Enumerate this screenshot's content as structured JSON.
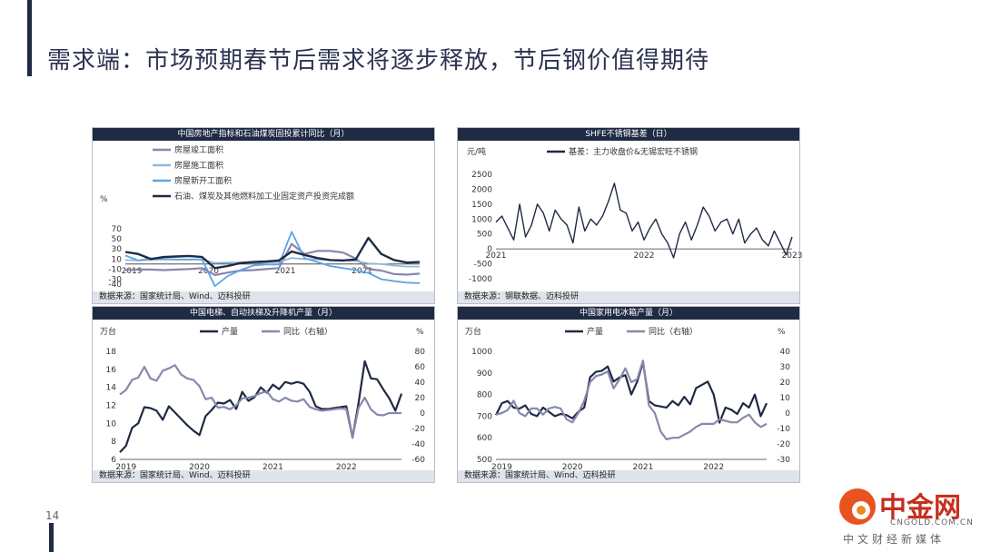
{
  "page": {
    "title": "需求端：市场预期春节后需求将逐步释放，节后钢价值得期待",
    "page_number": "14"
  },
  "logo": {
    "name": "中金网",
    "url": "CNGOLD.COM.CN",
    "subtitle": "中文财经新媒体"
  },
  "colors": {
    "navy": "#1f2a44",
    "purple": "#8b86ad",
    "lightblue": "#8fb8da",
    "blue": "#5aa6e6"
  },
  "chart_data": [
    {
      "type": "line",
      "title": "中国房地产指标和石油煤炭固投累计同比（月）",
      "source": "数据来源：国家统计局、Wind、迈科投研",
      "ylabel": "%",
      "ylim": [
        -40,
        70
      ],
      "yticks": [
        70,
        50,
        30,
        10,
        -10,
        -30,
        -40
      ],
      "ytick_labels": [
        "70",
        "50",
        "30",
        "10",
        "-10",
        "-30",
        "-40"
      ],
      "xlim": [
        2018.917,
        2022.75
      ],
      "xticks": [
        2019,
        2020,
        2021,
        2022
      ],
      "xtick_labels": [
        "2019",
        "2020",
        "2021",
        "2022"
      ],
      "legend": "top-left",
      "series": [
        {
          "name": "房屋竣工面积",
          "color": "#8b86ad",
          "width": 2.2,
          "x": [
            2018.917,
            2019.083,
            2019.25,
            2019.417,
            2019.583,
            2019.75,
            2019.917,
            2020.083,
            2020.25,
            2020.417,
            2020.583,
            2020.75,
            2020.917,
            2021.083,
            2021.25,
            2021.417,
            2021.583,
            2021.75,
            2021.917,
            2022.083,
            2022.25,
            2022.417,
            2022.583,
            2022.75
          ],
          "y": [
            -12,
            -11,
            -11,
            -12,
            -11,
            -10,
            -8,
            -22,
            -17,
            -13,
            -12,
            -10,
            -8,
            40,
            20,
            26,
            26,
            23,
            11,
            -10,
            -13,
            -20,
            -21,
            -19
          ]
        },
        {
          "name": "房屋施工面积",
          "color": "#8fb8da",
          "width": 1.8,
          "x": [
            2018.917,
            2019.083,
            2019.25,
            2019.417,
            2019.583,
            2019.75,
            2019.917,
            2020.083,
            2020.25,
            2020.417,
            2020.583,
            2020.75,
            2020.917,
            2021.083,
            2021.25,
            2021.417,
            2021.583,
            2021.75,
            2021.917,
            2022.083,
            2022.25,
            2022.417,
            2022.583,
            2022.75
          ],
          "y": [
            8,
            7,
            8,
            9,
            9,
            9,
            9,
            2,
            3,
            3,
            3,
            3,
            4,
            12,
            10,
            9,
            8,
            8,
            6,
            1,
            0,
            -3,
            -5,
            -5
          ]
        },
        {
          "name": "房屋新开工面积",
          "color": "#5aa6e6",
          "width": 1.8,
          "x": [
            2018.917,
            2019.083,
            2019.25,
            2019.417,
            2019.583,
            2019.75,
            2019.917,
            2020.083,
            2020.25,
            2020.417,
            2020.583,
            2020.75,
            2020.917,
            2021.083,
            2021.25,
            2021.417,
            2021.583,
            2021.75,
            2021.917,
            2022.083,
            2022.25,
            2022.417,
            2022.583,
            2022.75
          ],
          "y": [
            17,
            7,
            11,
            10,
            9,
            9,
            9,
            -44,
            -24,
            -12,
            -3,
            -1,
            -1,
            64,
            12,
            4,
            -4,
            -8,
            -12,
            -18,
            -30,
            -34,
            -37,
            -38
          ]
        },
        {
          "name": "石油、煤炭及其他燃料加工业固定资产投资完成额",
          "color": "#1f2a44",
          "width": 2.4,
          "x": [
            2018.917,
            2019.083,
            2019.25,
            2019.417,
            2019.583,
            2019.75,
            2019.917,
            2020.083,
            2020.25,
            2020.417,
            2020.583,
            2020.75,
            2020.917,
            2021.083,
            2021.25,
            2021.417,
            2021.583,
            2021.75,
            2021.917,
            2022.083,
            2022.25,
            2022.417,
            2022.583,
            2022.75
          ],
          "y": [
            24,
            20,
            10,
            14,
            15,
            16,
            14,
            -8,
            -4,
            2,
            4,
            5,
            7,
            25,
            18,
            12,
            8,
            7,
            9,
            52,
            20,
            8,
            3,
            4
          ]
        }
      ]
    },
    {
      "type": "line",
      "title": "SHFE不锈钢基差（日）",
      "source": "数据来源：钢联数据、迈科投研",
      "ylabel": "元/吨",
      "ylim": [
        -1000,
        2500
      ],
      "yticks": [
        2500,
        2000,
        1500,
        1000,
        500,
        0,
        -500,
        -1000
      ],
      "ytick_labels": [
        "2500",
        "2000",
        "1500",
        "1000",
        "500",
        "0",
        "-500",
        "-1000"
      ],
      "xlim": [
        2021.0,
        2023.0
      ],
      "xticks": [
        2021,
        2022,
        2023
      ],
      "xtick_labels": [
        "2021",
        "2022",
        "2023"
      ],
      "legend": "top-center",
      "series": [
        {
          "name": "基差：主力收盘价&无锡宏旺不锈钢",
          "color": "#1f2a44",
          "width": 1.4,
          "x": [
            2021.0,
            2021.04,
            2021.08,
            2021.12,
            2021.16,
            2021.2,
            2021.24,
            2021.28,
            2021.32,
            2021.36,
            2021.4,
            2021.44,
            2021.48,
            2021.52,
            2021.56,
            2021.6,
            2021.64,
            2021.68,
            2021.72,
            2021.76,
            2021.8,
            2021.84,
            2021.88,
            2021.92,
            2021.96,
            2022.0,
            2022.04,
            2022.08,
            2022.12,
            2022.16,
            2022.2,
            2022.24,
            2022.28,
            2022.32,
            2022.36,
            2022.4,
            2022.44,
            2022.48,
            2022.52,
            2022.56,
            2022.6,
            2022.64,
            2022.68,
            2022.72,
            2022.76,
            2022.8,
            2022.84,
            2022.88,
            2022.92,
            2022.96,
            2023.0
          ],
          "y": [
            900,
            1100,
            700,
            300,
            1500,
            400,
            800,
            1500,
            1200,
            600,
            1300,
            1000,
            800,
            200,
            1400,
            600,
            1000,
            800,
            1100,
            1600,
            2200,
            1300,
            1200,
            600,
            900,
            300,
            700,
            1000,
            500,
            200,
            -300,
            500,
            900,
            300,
            800,
            1400,
            1100,
            600,
            900,
            1000,
            500,
            1000,
            200,
            500,
            700,
            300,
            100,
            600,
            200,
            -200,
            400
          ]
        }
      ]
    },
    {
      "type": "line",
      "title": "中国电梯、自动扶梯及升降机产量（月）",
      "source": "数据来源：国家统计局、Wind、迈科投研",
      "ylabel": "万台",
      "y2label": "%",
      "ylim": [
        6,
        18
      ],
      "yticks": [
        18,
        16,
        14,
        12,
        10,
        8,
        6
      ],
      "ytick_labels": [
        "18",
        "16",
        "14",
        "12",
        "10",
        "8",
        "6"
      ],
      "y2lim": [
        -60,
        80
      ],
      "y2ticks": [
        80,
        60,
        40,
        20,
        0,
        -20,
        -40,
        -60
      ],
      "y2tick_labels": [
        "80",
        "60",
        "40",
        "20",
        "0",
        "-20",
        "-40",
        "-60"
      ],
      "xlim": [
        2018.917,
        2022.75
      ],
      "xticks": [
        2019,
        2020,
        2021,
        2022
      ],
      "xtick_labels": [
        "2019",
        "2020",
        "2021",
        "2022"
      ],
      "legend": "top-center",
      "series": [
        {
          "name": "产量",
          "axis": "left",
          "color": "#1f2a44",
          "width": 2.2,
          "x": [
            2018.917,
            2019.0,
            2019.083,
            2019.167,
            2019.25,
            2019.333,
            2019.417,
            2019.5,
            2019.583,
            2019.667,
            2019.75,
            2019.833,
            2019.917,
            2020.0,
            2020.083,
            2020.167,
            2020.25,
            2020.333,
            2020.417,
            2020.5,
            2020.583,
            2020.667,
            2020.75,
            2020.833,
            2020.917,
            2021.0,
            2021.083,
            2021.167,
            2021.25,
            2021.333,
            2021.417,
            2021.5,
            2021.583,
            2021.667,
            2021.75,
            2021.833,
            2021.917,
            2022.0,
            2022.083,
            2022.167,
            2022.25,
            2022.333,
            2022.417,
            2022.5,
            2022.583,
            2022.667,
            2022.75
          ],
          "y": [
            6.8,
            7.5,
            9.5,
            10,
            11.8,
            11.7,
            11.4,
            10.4,
            11.9,
            11.2,
            10.5,
            9.8,
            9.2,
            8.7,
            10.8,
            11.5,
            12.3,
            12.2,
            12.6,
            11.6,
            13.5,
            12.5,
            12.9,
            14.0,
            13.4,
            14.3,
            13.8,
            14.6,
            14.4,
            14.6,
            14.4,
            13.5,
            11.9,
            11.6,
            11.6,
            11.7,
            11.8,
            11.9,
            8.4,
            12.3,
            16.9,
            15.0,
            14.9,
            13.8,
            12.8,
            11.4,
            13.3
          ]
        },
        {
          "name": "同比（右轴）",
          "axis": "right",
          "color": "#8b86ad",
          "width": 2.2,
          "x": [
            2018.917,
            2019.0,
            2019.083,
            2019.167,
            2019.25,
            2019.333,
            2019.417,
            2019.5,
            2019.583,
            2019.667,
            2019.75,
            2019.833,
            2019.917,
            2020.0,
            2020.083,
            2020.167,
            2020.25,
            2020.333,
            2020.417,
            2020.5,
            2020.583,
            2020.667,
            2020.75,
            2020.833,
            2020.917,
            2021.0,
            2021.083,
            2021.167,
            2021.25,
            2021.333,
            2021.417,
            2021.5,
            2021.583,
            2021.667,
            2021.75,
            2021.833,
            2021.917,
            2022.0,
            2022.083,
            2022.167,
            2022.25,
            2022.333,
            2022.417,
            2022.5,
            2022.583,
            2022.667,
            2022.75
          ],
          "y": [
            24,
            30,
            43,
            46,
            60,
            45,
            42,
            55,
            58,
            62,
            50,
            45,
            43,
            35,
            18,
            20,
            7,
            8,
            5,
            10,
            19,
            20,
            22,
            26,
            28,
            18,
            15,
            20,
            16,
            15,
            18,
            8,
            5,
            3,
            4,
            5,
            6,
            5,
            -32,
            7,
            20,
            5,
            -2,
            -3,
            0,
            0,
            0
          ]
        }
      ]
    },
    {
      "type": "line",
      "title": "中国家用电冰箱产量（月）",
      "source": "数据来源：国家统计局、Wind、迈科投研",
      "ylabel": "万台",
      "y2label": "%",
      "ylim": [
        500,
        1000
      ],
      "yticks": [
        1000,
        900,
        800,
        700,
        600,
        500
      ],
      "ytick_labels": [
        "1000",
        "900",
        "800",
        "700",
        "600",
        "500"
      ],
      "y2lim": [
        -30,
        40
      ],
      "y2ticks": [
        40,
        30,
        20,
        10,
        0,
        -10,
        -20,
        -30
      ],
      "y2tick_labels": [
        "40",
        "30",
        "20",
        "10",
        "0",
        "-10",
        "-20",
        "-30"
      ],
      "xlim": [
        2018.917,
        2022.75
      ],
      "xticks": [
        2019,
        2020,
        2021,
        2022
      ],
      "xtick_labels": [
        "2019",
        "2020",
        "2021",
        "2022"
      ],
      "legend": "top-center",
      "series": [
        {
          "name": "产量",
          "axis": "left",
          "color": "#1f2a44",
          "width": 2.2,
          "x": [
            2018.917,
            2019.0,
            2019.083,
            2019.167,
            2019.25,
            2019.333,
            2019.417,
            2019.5,
            2019.583,
            2019.667,
            2019.75,
            2019.833,
            2019.917,
            2020.0,
            2020.083,
            2020.167,
            2020.25,
            2020.333,
            2020.417,
            2020.5,
            2020.583,
            2020.667,
            2020.75,
            2020.833,
            2020.917,
            2021.0,
            2021.083,
            2021.167,
            2021.25,
            2021.333,
            2021.417,
            2021.5,
            2021.583,
            2021.667,
            2021.75,
            2021.833,
            2021.917,
            2022.0,
            2022.083,
            2022.167,
            2022.25,
            2022.333,
            2022.417,
            2022.5,
            2022.583,
            2022.667,
            2022.75
          ],
          "y": [
            705,
            760,
            770,
            740,
            735,
            750,
            710,
            700,
            740,
            720,
            700,
            710,
            705,
            690,
            720,
            740,
            880,
            905,
            910,
            930,
            860,
            880,
            890,
            800,
            860,
            950,
            770,
            750,
            745,
            740,
            770,
            750,
            790,
            755,
            830,
            845,
            860,
            800,
            670,
            740,
            730,
            710,
            760,
            740,
            800,
            700,
            760
          ]
        },
        {
          "name": "同比（右轴）",
          "axis": "right",
          "color": "#8b86ad",
          "width": 2.2,
          "x": [
            2018.917,
            2019.0,
            2019.083,
            2019.167,
            2019.25,
            2019.333,
            2019.417,
            2019.5,
            2019.583,
            2019.667,
            2019.75,
            2019.833,
            2019.917,
            2020.0,
            2020.083,
            2020.167,
            2020.25,
            2020.333,
            2020.417,
            2020.5,
            2020.583,
            2020.667,
            2020.75,
            2020.833,
            2020.917,
            2021.0,
            2021.083,
            2021.167,
            2021.25,
            2021.333,
            2021.417,
            2021.5,
            2021.583,
            2021.667,
            2021.75,
            2021.833,
            2021.917,
            2022.0,
            2022.083,
            2022.167,
            2022.25,
            2022.333,
            2022.417,
            2022.5,
            2022.583,
            2022.667,
            2022.75
          ],
          "y": [
            -1,
            0,
            2,
            8,
            0,
            -2,
            3,
            3,
            -1,
            3,
            4,
            3,
            -4,
            -6,
            0,
            8,
            20,
            24,
            25,
            27,
            16,
            22,
            29,
            20,
            22,
            34,
            5,
            0,
            -12,
            -17,
            -16,
            -16,
            -14,
            -12,
            -9,
            -7,
            -7,
            -7,
            -4,
            -5,
            -6,
            -6,
            -3,
            -1,
            -6,
            -9,
            -7
          ]
        }
      ]
    }
  ]
}
